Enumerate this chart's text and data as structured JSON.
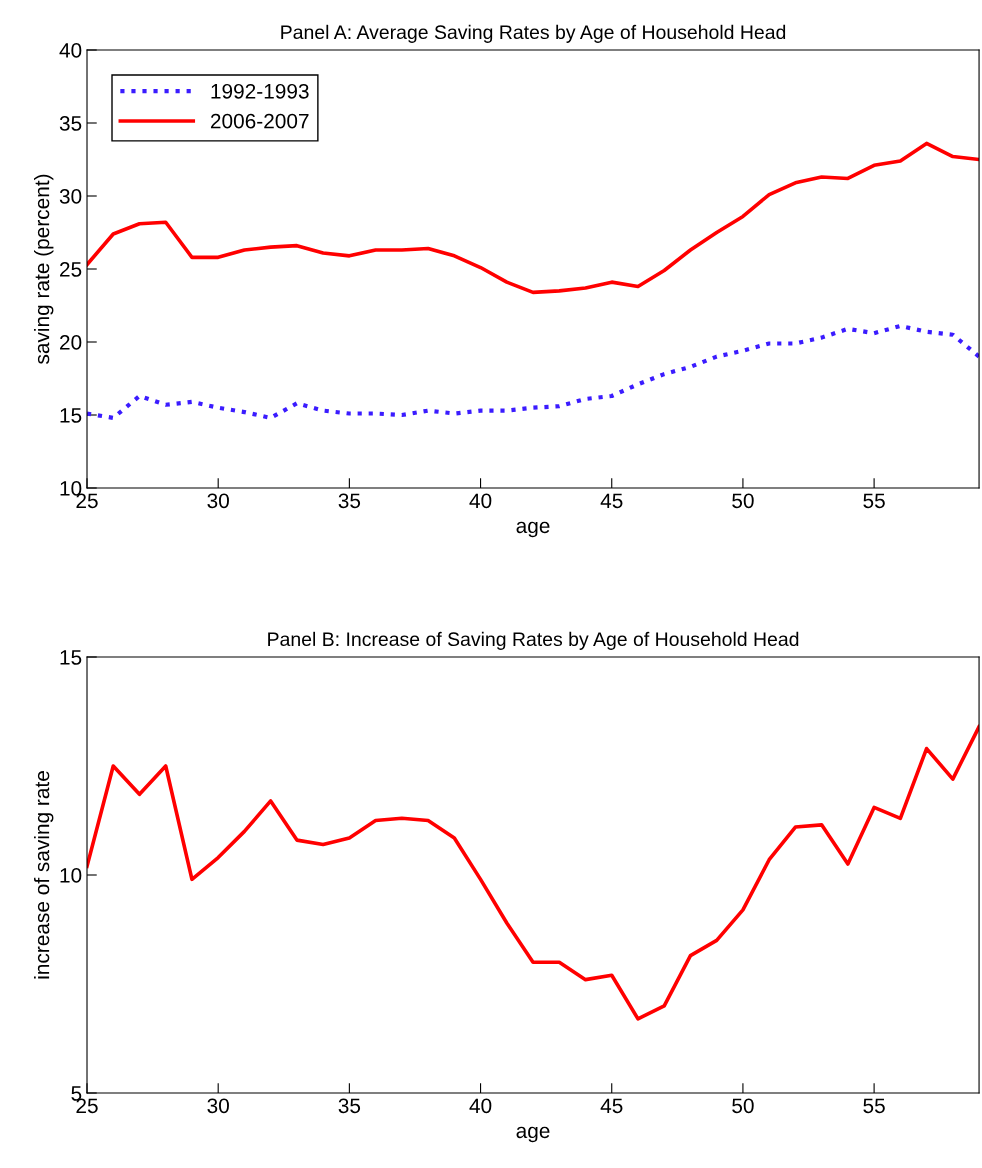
{
  "chart_data": [
    {
      "type": "line",
      "title": "Panel A: Average Saving Rates by Age of Household Head",
      "xlabel": "age",
      "ylabel": "saving rate (percent)",
      "x": [
        25,
        26,
        27,
        28,
        29,
        30,
        31,
        32,
        33,
        34,
        35,
        36,
        37,
        38,
        39,
        40,
        41,
        42,
        43,
        44,
        45,
        46,
        47,
        48,
        49,
        50,
        51,
        52,
        53,
        54,
        55,
        56,
        57,
        58,
        59
      ],
      "series": [
        {
          "name": "1992-1993",
          "color": "#3b1cff",
          "line_style": "dotted",
          "values": [
            15.1,
            14.8,
            16.3,
            15.7,
            15.9,
            15.5,
            15.2,
            14.8,
            15.8,
            15.3,
            15.1,
            15.1,
            15.0,
            15.3,
            15.1,
            15.3,
            15.3,
            15.5,
            15.6,
            16.1,
            16.3,
            17.1,
            17.8,
            18.3,
            19.0,
            19.4,
            19.9,
            19.9,
            20.3,
            20.9,
            20.6,
            21.1,
            20.7,
            20.5,
            19.0
          ]
        },
        {
          "name": "2006-2007",
          "color": "#ff0000",
          "line_style": "solid",
          "values": [
            25.3,
            27.4,
            28.1,
            28.2,
            25.8,
            25.8,
            26.3,
            26.5,
            26.6,
            26.1,
            25.9,
            26.3,
            26.3,
            26.4,
            25.9,
            25.1,
            24.1,
            23.4,
            23.5,
            23.7,
            24.1,
            23.8,
            24.9,
            26.3,
            27.5,
            28.6,
            30.1,
            30.9,
            31.3,
            31.2,
            32.1,
            32.4,
            33.6,
            32.7,
            32.5
          ]
        }
      ],
      "xlim": [
        25,
        59
      ],
      "xticks": [
        25,
        30,
        35,
        40,
        45,
        50,
        55
      ],
      "ylim": [
        10,
        40
      ],
      "yticks": [
        10,
        15,
        20,
        25,
        30,
        35,
        40
      ],
      "legend": "top left",
      "grid": false
    },
    {
      "type": "line",
      "title": "Panel B: Increase of Saving Rates by Age of Household Head",
      "xlabel": "age",
      "ylabel": "increase of saving rate",
      "x": [
        25,
        26,
        27,
        28,
        29,
        30,
        31,
        32,
        33,
        34,
        35,
        36,
        37,
        38,
        39,
        40,
        41,
        42,
        43,
        44,
        45,
        46,
        47,
        48,
        49,
        50,
        51,
        52,
        53,
        54,
        55,
        56,
        57,
        58,
        59
      ],
      "series": [
        {
          "color": "#ff0000",
          "line_style": "solid",
          "values": [
            10.2,
            12.5,
            11.85,
            12.5,
            9.9,
            10.4,
            11.0,
            11.7,
            10.8,
            10.7,
            10.85,
            11.25,
            11.3,
            11.25,
            10.85,
            9.9,
            8.9,
            8.0,
            8.0,
            7.6,
            7.7,
            6.7,
            7.0,
            8.15,
            8.5,
            9.2,
            10.35,
            11.1,
            11.15,
            10.25,
            11.55,
            11.3,
            12.9,
            12.2,
            13.4
          ]
        }
      ],
      "xlim": [
        25,
        59
      ],
      "xticks": [
        25,
        30,
        35,
        40,
        45,
        50,
        55
      ],
      "ylim": [
        5,
        15
      ],
      "yticks": [
        5,
        10,
        15
      ],
      "grid": false
    }
  ]
}
